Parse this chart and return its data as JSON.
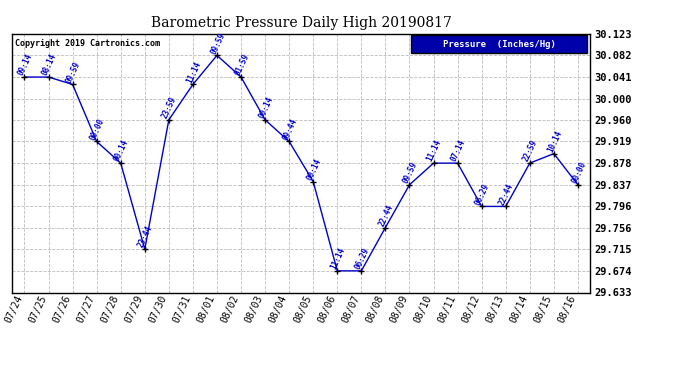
{
  "title": "Barometric Pressure Daily High 20190817",
  "copyright": "Copyright 2019 Cartronics.com",
  "legend_label": "Pressure  (Inches/Hg)",
  "x_labels": [
    "07/24",
    "07/25",
    "07/26",
    "07/27",
    "07/28",
    "07/29",
    "07/30",
    "07/31",
    "08/01",
    "08/02",
    "08/03",
    "08/04",
    "08/05",
    "08/06",
    "08/07",
    "08/08",
    "08/09",
    "08/10",
    "08/11",
    "08/12",
    "08/13",
    "08/14",
    "08/15",
    "08/16"
  ],
  "y_values": [
    30.041,
    30.041,
    30.027,
    29.919,
    29.878,
    29.715,
    29.96,
    30.027,
    30.082,
    30.041,
    29.96,
    29.919,
    29.843,
    29.674,
    29.674,
    29.756,
    29.837,
    29.878,
    29.878,
    29.796,
    29.796,
    29.878,
    29.896,
    29.837
  ],
  "point_labels": [
    "09:14",
    "08:14",
    "09:59",
    "00:00",
    "00:14",
    "23:44",
    "23:59",
    "11:14",
    "09:59",
    "01:59",
    "00:14",
    "09:44",
    "00:14",
    "11:14",
    "06:29",
    "22:44",
    "09:59",
    "11:14",
    "07:14",
    "06:29",
    "22:44",
    "22:59",
    "10:14",
    "00:00"
  ],
  "ylim_min": 29.633,
  "ylim_max": 30.123,
  "yticks": [
    29.633,
    29.674,
    29.715,
    29.756,
    29.796,
    29.837,
    29.878,
    29.919,
    29.96,
    30.0,
    30.041,
    30.082,
    30.123
  ],
  "line_color": "#0000cc",
  "marker_color": "#000000",
  "grid_color": "#bbbbbb",
  "bg_color": "#ffffff",
  "title_color": "#000000",
  "label_color": "#0000cc",
  "legend_bg": "#0000aa",
  "legend_fg": "#ffffff",
  "copyright_color": "#000000",
  "figwidth": 6.9,
  "figheight": 3.75,
  "dpi": 100
}
